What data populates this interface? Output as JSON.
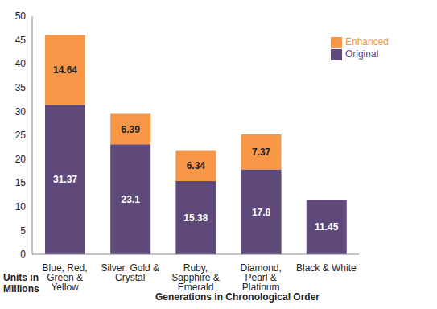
{
  "chart_data": {
    "type": "bar",
    "stacked": true,
    "x_label": "Generations in Chronological Order",
    "y_label": "Units in Millions",
    "categories": [
      "Blue, Red, Green & Yellow",
      "Silver, Gold & Crystal",
      "Ruby, Sapphire & Emerald",
      "Diamond, Pearl & Platinum",
      "Black & White"
    ],
    "series": [
      {
        "name": "Original",
        "color": "#5f497a",
        "values": [
          31.37,
          23.1,
          15.38,
          17.8,
          11.45
        ]
      },
      {
        "name": "Enhanced",
        "color": "#f79646",
        "values": [
          14.64,
          6.39,
          6.34,
          7.37,
          null
        ]
      }
    ],
    "ylim": [
      0,
      50
    ],
    "yticks": [
      0,
      5,
      10,
      15,
      20,
      25,
      30,
      35,
      40,
      45,
      50
    ],
    "grid": false,
    "legend": "upper right",
    "data_labels": true
  }
}
